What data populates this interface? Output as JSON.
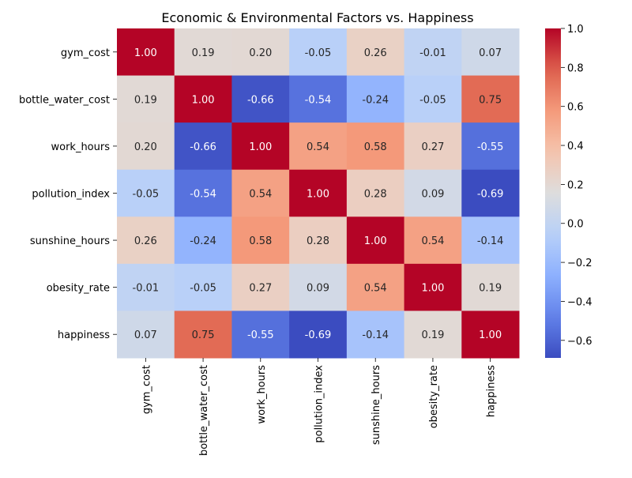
{
  "chart_data": {
    "type": "heatmap",
    "title": "Economic & Environmental Factors vs. Happiness",
    "xlabel": "",
    "ylabel": "",
    "variables": [
      "gym_cost",
      "bottle_water_cost",
      "work_hours",
      "pollution_index",
      "sunshine_hours",
      "obesity_rate",
      "happiness"
    ],
    "values": [
      [
        1.0,
        0.19,
        0.2,
        -0.05,
        0.26,
        -0.01,
        0.07
      ],
      [
        0.19,
        1.0,
        -0.66,
        -0.54,
        -0.24,
        -0.05,
        0.75
      ],
      [
        0.2,
        -0.66,
        1.0,
        0.54,
        0.58,
        0.27,
        -0.55
      ],
      [
        -0.05,
        -0.54,
        0.54,
        1.0,
        0.28,
        0.09,
        -0.69
      ],
      [
        0.26,
        -0.24,
        0.58,
        0.28,
        1.0,
        0.54,
        -0.14
      ],
      [
        -0.01,
        -0.05,
        0.27,
        0.09,
        0.54,
        1.0,
        0.19
      ],
      [
        0.07,
        0.75,
        -0.55,
        -0.69,
        -0.14,
        0.19,
        1.0
      ]
    ],
    "colormap": "coolwarm",
    "value_range": [
      -0.69,
      1.0
    ],
    "annotation_format": "2 decimals",
    "colorbar": {
      "ticks": [
        -0.6,
        -0.4,
        -0.2,
        0.0,
        0.2,
        0.4,
        0.6,
        0.8,
        1.0
      ],
      "tick_labels": [
        "−0.6",
        "−0.4",
        "−0.2",
        "0.0",
        "0.2",
        "0.4",
        "0.6",
        "0.8",
        "1.0"
      ],
      "position": "right"
    },
    "colors": {
      "cold": "#3b4cc0",
      "neutral": "#dddddd",
      "warm": "#b40426",
      "text_dark": "#262626",
      "text_light": "#ffffff"
    }
  }
}
